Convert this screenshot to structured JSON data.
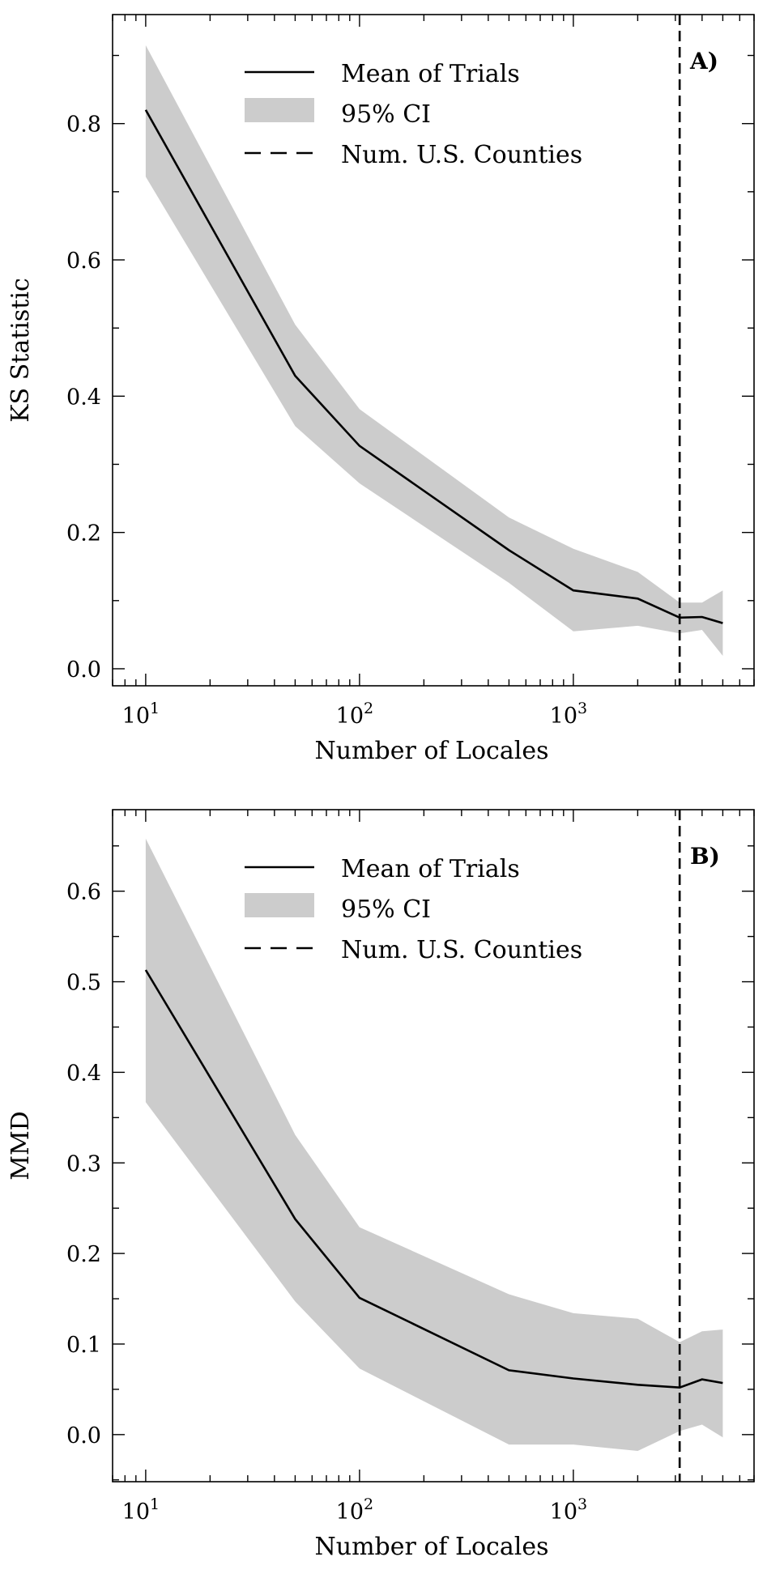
{
  "chart_data": [
    {
      "type": "line",
      "panel_label": "A)",
      "xlabel": "Number of Locales",
      "ylabel": "KS Statistic",
      "xscale": "log",
      "xlim": [
        7,
        7000
      ],
      "ylim": [
        -0.025,
        0.96
      ],
      "xticks": [
        {
          "base": "10",
          "exp": "1",
          "value": 10
        },
        {
          "base": "10",
          "exp": "2",
          "value": 100
        },
        {
          "base": "10",
          "exp": "3",
          "value": 1000
        }
      ],
      "yticks": [
        "0.0",
        "0.2",
        "0.4",
        "0.6",
        "0.8"
      ],
      "legend_position": "top-center",
      "legend": [
        "Mean of Trials",
        "95% CI",
        "Num. U.S. Counties"
      ],
      "x": [
        10,
        50,
        100,
        500,
        1000,
        2000,
        3142,
        4000,
        5000
      ],
      "series": [
        {
          "name": "Mean of Trials",
          "values": [
            0.82,
            0.43,
            0.327,
            0.174,
            0.115,
            0.103,
            0.075,
            0.076,
            0.067
          ]
        },
        {
          "name": "95% CI",
          "lower": [
            0.722,
            0.356,
            0.272,
            0.126,
            0.055,
            0.063,
            0.052,
            0.057,
            0.019
          ],
          "upper": [
            0.915,
            0.505,
            0.381,
            0.222,
            0.176,
            0.142,
            0.097,
            0.097,
            0.115
          ]
        }
      ],
      "vline": {
        "name": "Num. U.S. Counties",
        "x": 3142
      },
      "colors": {
        "line": "#000000",
        "band": "#cccccc",
        "vline": "#000000"
      }
    },
    {
      "type": "line",
      "panel_label": "B)",
      "xlabel": "Number of Locales",
      "ylabel": "MMD",
      "xscale": "log",
      "xlim": [
        7,
        7000
      ],
      "ylim": [
        -0.052,
        0.69
      ],
      "xticks": [
        {
          "base": "10",
          "exp": "1",
          "value": 10
        },
        {
          "base": "10",
          "exp": "2",
          "value": 100
        },
        {
          "base": "10",
          "exp": "3",
          "value": 1000
        }
      ],
      "yticks": [
        "0.0",
        "0.1",
        "0.2",
        "0.3",
        "0.4",
        "0.5",
        "0.6"
      ],
      "legend_position": "top-center",
      "legend": [
        "Mean of Trials",
        "95% CI",
        "Num. U.S. Counties"
      ],
      "x": [
        10,
        50,
        100,
        500,
        1000,
        2000,
        3142,
        4000,
        5000
      ],
      "series": [
        {
          "name": "Mean of Trials",
          "values": [
            0.513,
            0.238,
            0.151,
            0.071,
            0.062,
            0.055,
            0.052,
            0.061,
            0.057
          ]
        },
        {
          "name": "95% CI",
          "lower": [
            0.367,
            0.147,
            0.073,
            -0.011,
            -0.011,
            -0.018,
            0.004,
            0.011,
            -0.003
          ],
          "upper": [
            0.658,
            0.331,
            0.229,
            0.155,
            0.134,
            0.128,
            0.102,
            0.114,
            0.116
          ]
        }
      ],
      "vline": {
        "name": "Num. U.S. Counties",
        "x": 3142
      },
      "colors": {
        "line": "#000000",
        "band": "#cccccc",
        "vline": "#000000"
      }
    }
  ]
}
